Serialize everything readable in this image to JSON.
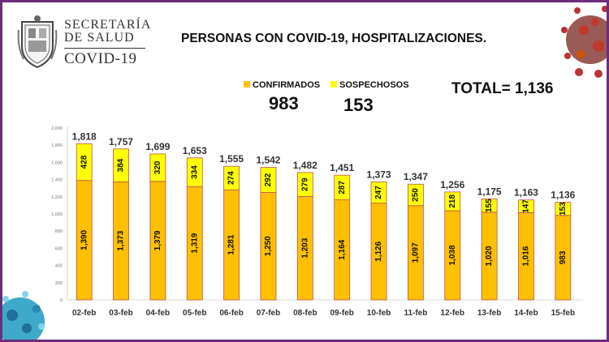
{
  "header": {
    "logo_line1": "SECRETARÍA",
    "logo_line2": "DE SALUD",
    "logo_line3": "COVID-19",
    "title": "PERSONAS CON COVID-19, HOSPITALIZACIONES."
  },
  "legend": {
    "confirmed_label": "CONFIRMADOS",
    "confirmed_value": "983",
    "suspected_label": "SOSPECHOSOS",
    "suspected_value": "153"
  },
  "total_text": "TOTAL= 1,136",
  "colors": {
    "confirmed": "#ffc000",
    "suspected": "#ffff00",
    "bar_outline": "#c0504d",
    "frame": "#6b2d7b"
  },
  "chart_data": {
    "type": "bar",
    "stacked": true,
    "categories": [
      "02-feb",
      "03-feb",
      "04-feb",
      "05-feb",
      "06-feb",
      "07-feb",
      "08-feb",
      "09-feb",
      "10-feb",
      "11-feb",
      "12-feb",
      "13-feb",
      "14-feb",
      "15-feb"
    ],
    "series": [
      {
        "name": "CONFIRMADOS",
        "values": [
          1390,
          1373,
          1379,
          1319,
          1281,
          1250,
          1203,
          1164,
          1126,
          1097,
          1038,
          1020,
          1016,
          983
        ]
      },
      {
        "name": "SOSPECHOSOS",
        "values": [
          428,
          384,
          320,
          334,
          274,
          292,
          279,
          287,
          247,
          250,
          218,
          155,
          147,
          153
        ]
      }
    ],
    "totals": [
      1818,
      1757,
      1699,
      1653,
      1555,
      1542,
      1482,
      1451,
      1373,
      1347,
      1256,
      1175,
      1163,
      1136
    ],
    "yticks": [
      "0",
      "200",
      "400",
      "600",
      "800",
      "1,000",
      "1,200",
      "1,400",
      "1,600",
      "1,800",
      "2,000"
    ],
    "ylim": [
      0,
      2000
    ],
    "grid": false,
    "legend": "top-center"
  }
}
